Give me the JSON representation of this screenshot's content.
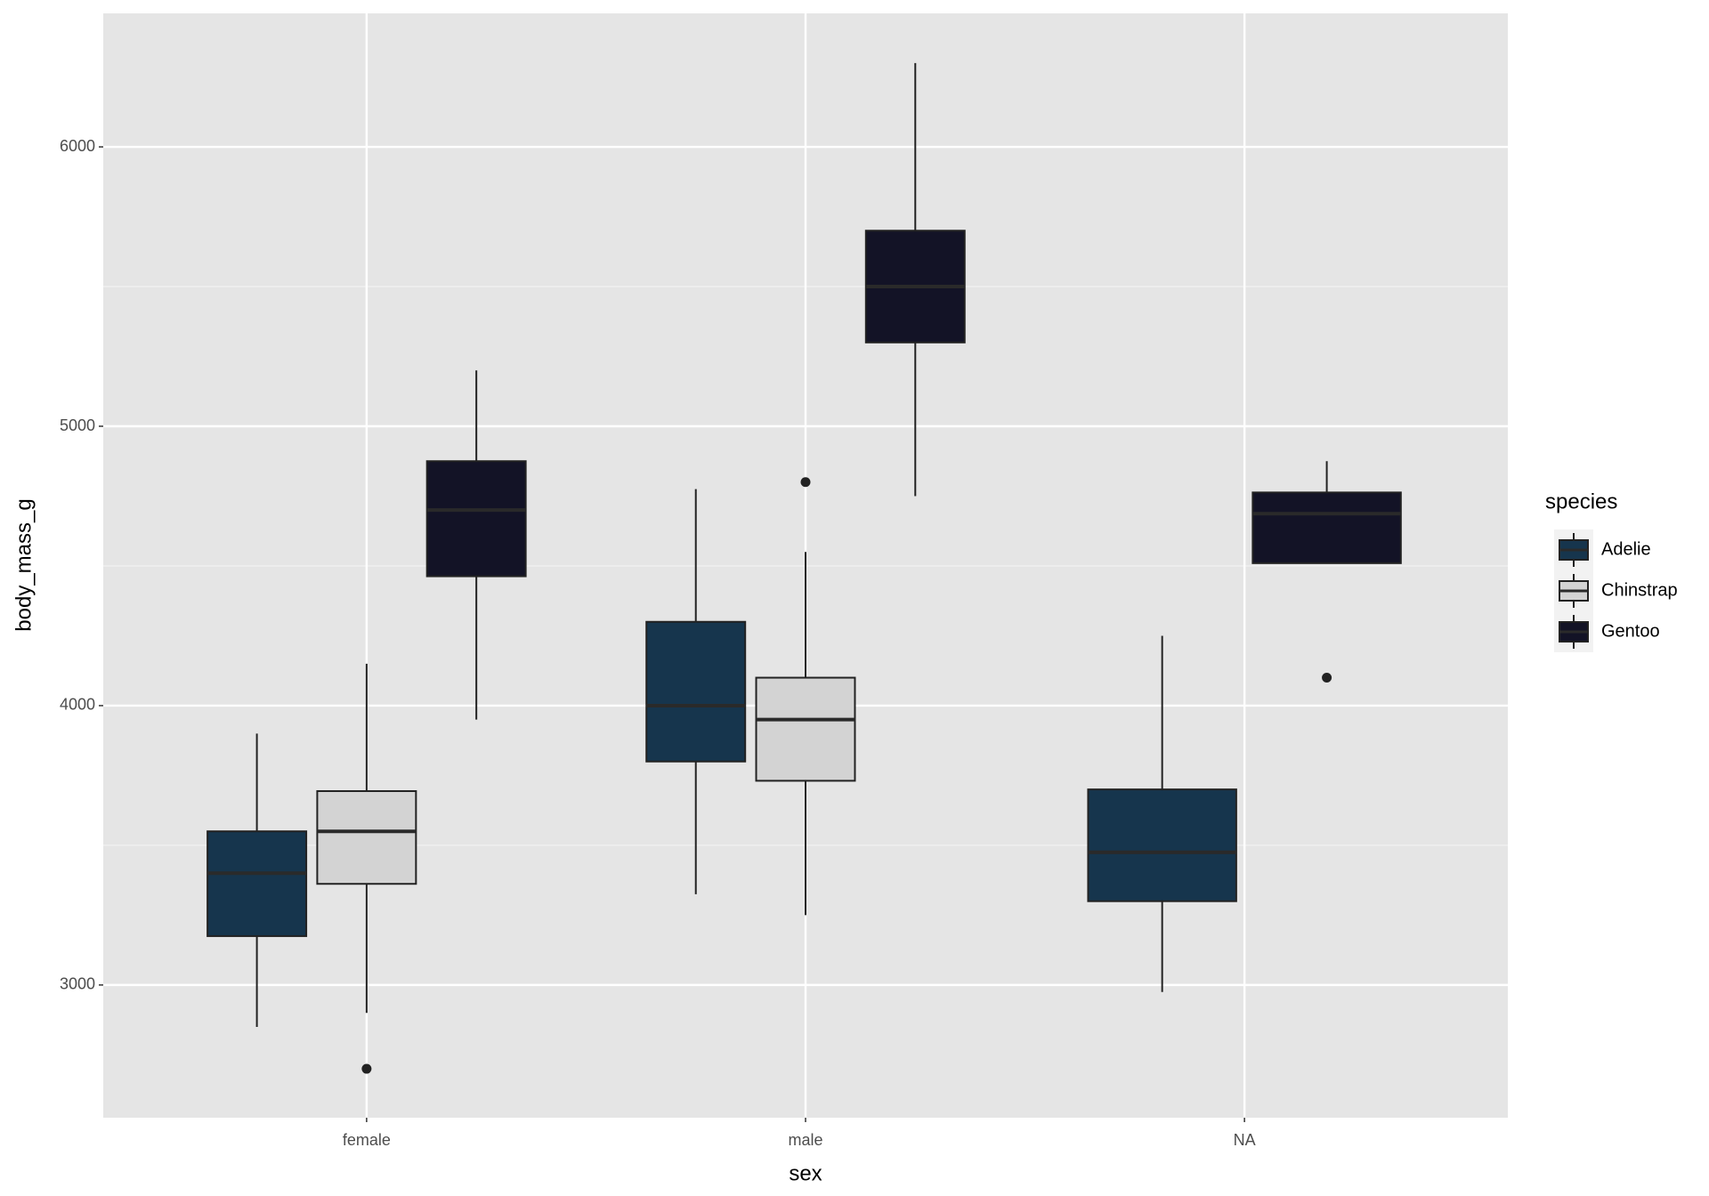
{
  "chart_data": {
    "type": "boxplot",
    "x_label": "sex",
    "y_label": "body_mass_g",
    "categories": [
      "female",
      "male",
      "NA"
    ],
    "legend_title": "species",
    "legend_position": "right",
    "ylim": [
      2525,
      6478
    ],
    "yticks": [
      3000,
      4000,
      5000,
      6000
    ],
    "grid": true,
    "series": [
      {
        "name": "Adelie",
        "color": "#16354d",
        "stats": [
          {
            "low": 2850,
            "q1": 3175,
            "median": 3400,
            "q3": 3550,
            "high": 3900,
            "outliers": []
          },
          {
            "low": 3325,
            "q1": 3800,
            "median": 4000,
            "q3": 4300,
            "high": 4775,
            "outliers": []
          },
          {
            "low": 2975,
            "q1": 3300,
            "median": 3475,
            "q3": 3700,
            "high": 4250,
            "outliers": []
          }
        ]
      },
      {
        "name": "Chinstrap",
        "color": "#d3d3d3",
        "stats": [
          {
            "low": 2900,
            "q1": 3362,
            "median": 3550,
            "q3": 3694,
            "high": 4150,
            "outliers": [
              2700
            ]
          },
          {
            "low": 3250,
            "q1": 3731,
            "median": 3950,
            "q3": 4100,
            "high": 4550,
            "outliers": [
              4800
            ]
          },
          null
        ]
      },
      {
        "name": "Gentoo",
        "color": "#131326",
        "stats": [
          {
            "low": 3950,
            "q1": 4463,
            "median": 4700,
            "q3": 4875,
            "high": 5200,
            "outliers": []
          },
          {
            "low": 4750,
            "q1": 5300,
            "median": 5500,
            "q3": 5700,
            "high": 6300,
            "outliers": []
          },
          {
            "low": 4510,
            "q1": 4510,
            "median": 4687,
            "q3": 4763,
            "high": 4875,
            "outliers": [
              4100
            ]
          }
        ]
      }
    ]
  }
}
